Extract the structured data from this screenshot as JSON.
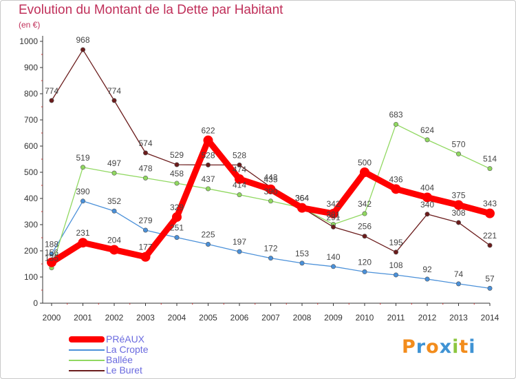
{
  "header": {
    "title": "Evolution du Montant de la Dette par Habitant",
    "subtitle": "(en €)"
  },
  "logo": {
    "text": "Proxiti",
    "colors": [
      "#f28c1c",
      "#3f93d4",
      "#f28c1c",
      "#3f93d4",
      "#8cc63f",
      "#f28c1c",
      "#3f93d4"
    ]
  },
  "chart_data": {
    "type": "line",
    "x": [
      "2000",
      "2001",
      "2002",
      "2003",
      "2004",
      "2005",
      "2006",
      "2007",
      "2008",
      "2009",
      "2010",
      "2011",
      "2012",
      "2013",
      "2014"
    ],
    "ylim": [
      0,
      1000
    ],
    "yticks": [
      0,
      100,
      200,
      300,
      400,
      500,
      600,
      700,
      800,
      900,
      1000
    ],
    "grid": false,
    "legend_position": "bottom-left",
    "series": [
      {
        "name": "PRéAUX",
        "color": "#ff0000",
        "emphasis": true,
        "values": [
          156,
          231,
          204,
          177,
          329,
          622,
          474,
          435,
          364,
          342,
          500,
          436,
          404,
          375,
          343
        ]
      },
      {
        "name": "La Cropte",
        "color": "#4a90d9",
        "values": [
          188,
          390,
          352,
          279,
          251,
          225,
          197,
          172,
          153,
          140,
          120,
          108,
          92,
          74,
          57
        ]
      },
      {
        "name": "Ballée",
        "color": "#90d860",
        "values": [
          135,
          519,
          497,
          478,
          458,
          437,
          414,
          390,
          364,
          301,
          342,
          683,
          624,
          570,
          514
        ]
      },
      {
        "name": "Le Buret",
        "color": "#6b1c1c",
        "values": [
          774,
          968,
          774,
          574,
          529,
          528,
          528,
          443,
          364,
          291,
          256,
          195,
          340,
          308,
          221
        ]
      }
    ]
  }
}
